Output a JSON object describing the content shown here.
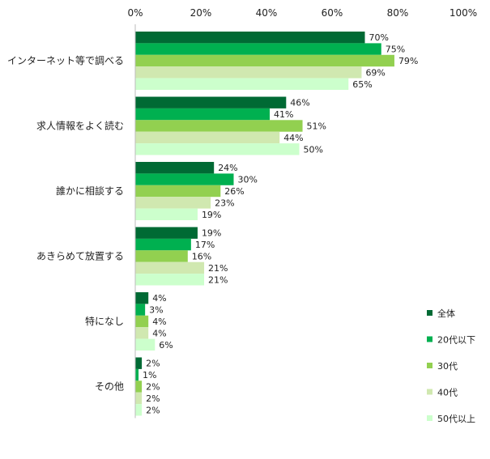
{
  "chart_data": {
    "type": "bar",
    "orientation": "horizontal",
    "title": "",
    "xlabel": "",
    "ylabel": "",
    "xlim": [
      0,
      100
    ],
    "x_ticks": [
      "0%",
      "20%",
      "40%",
      "60%",
      "80%",
      "100%"
    ],
    "categories": [
      "インターネット等で調べる",
      "求人情報をよく読む",
      "誰かに相談する",
      "あきらめて放置する",
      "特になし",
      "その他"
    ],
    "series": [
      {
        "name": "全体",
        "color": "#006a34",
        "values": [
          70,
          46,
          24,
          19,
          4,
          2
        ]
      },
      {
        "name": "20代以下",
        "color": "#00b050",
        "values": [
          75,
          41,
          30,
          17,
          3,
          1
        ]
      },
      {
        "name": "30代",
        "color": "#92d050",
        "values": [
          79,
          51,
          26,
          16,
          4,
          2
        ]
      },
      {
        "name": "40代",
        "color": "#d0e8b0",
        "values": [
          69,
          44,
          23,
          21,
          4,
          2
        ]
      },
      {
        "name": "50代以上",
        "color": "#ccffcc",
        "values": [
          65,
          50,
          19,
          21,
          6,
          2
        ]
      }
    ],
    "value_suffix": "%",
    "grid": false,
    "legend_position": "right"
  }
}
